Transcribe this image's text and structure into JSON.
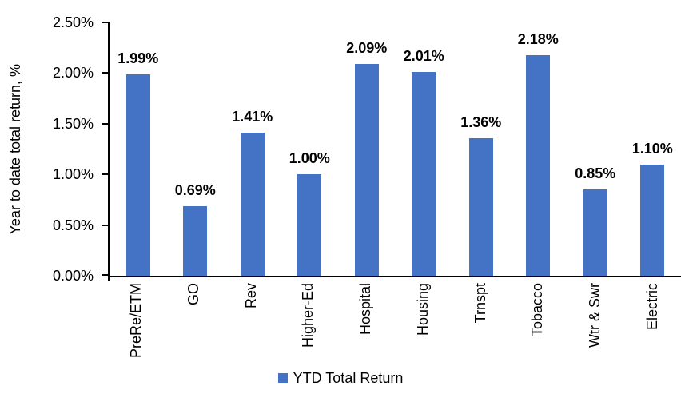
{
  "chart_data": {
    "type": "bar",
    "categories": [
      "PreRe/ETM",
      "GO",
      "Rev",
      "Higher-Ed",
      "Hospital",
      "Housing",
      "Trnspt",
      "Tobacco",
      "Wtr & Swr",
      "Electric"
    ],
    "values": [
      1.99,
      0.69,
      1.41,
      1.0,
      2.09,
      2.01,
      1.36,
      2.18,
      0.85,
      1.1
    ],
    "value_labels": [
      "1.99%",
      "0.69%",
      "1.41%",
      "1.00%",
      "2.09%",
      "2.01%",
      "1.36%",
      "2.18%",
      "0.85%",
      "1.10%"
    ],
    "title": "",
    "xlabel": "",
    "ylabel": "Year to date total return, %",
    "ylim": [
      0,
      2.5
    ],
    "ytick_values": [
      0,
      0.5,
      1.0,
      1.5,
      2.0,
      2.5
    ],
    "ytick_labels": [
      "0.00%",
      "0.50%",
      "1.00%",
      "1.50%",
      "2.00%",
      "2.50%"
    ],
    "grid": "off",
    "legend_position": "bottom",
    "legend_entries": [
      "YTD Total Return"
    ],
    "bar_color": "#4472C4",
    "axis_color": "#000000",
    "text_color": "#000000"
  }
}
